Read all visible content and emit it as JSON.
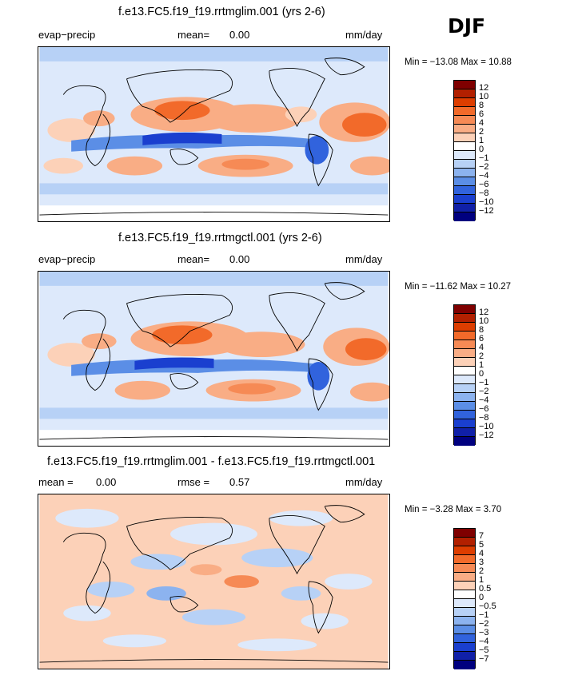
{
  "season": "DJF",
  "panels": [
    {
      "title": "f.e13.FC5.f19_f19.rrtmglim.001 (yrs 2-6)",
      "left_label": "evap−precip",
      "stat1_label": "mean=",
      "stat1_value": "0.00",
      "units": "mm/day",
      "min_max": "Min = −13.08 Max =   10.88",
      "colorbar": {
        "colors": [
          "#7f0000",
          "#b22000",
          "#dd3d00",
          "#f26a2a",
          "#f68a55",
          "#f9ad85",
          "#fcd1b8",
          "#ffffff",
          "#dde9fb",
          "#b7d1f6",
          "#8cb3ef",
          "#5b8ee6",
          "#3163dd",
          "#1a3fcf",
          "#1020a8",
          "#00007f"
        ],
        "labels": [
          "12",
          "10",
          "8",
          "6",
          "4",
          "2",
          "1",
          "0",
          "−1",
          "−2",
          "−4",
          "−6",
          "−8",
          "−10",
          "−12"
        ]
      }
    },
    {
      "title": "f.e13.FC5.f19_f19.rrtmgctl.001 (yrs 2-6)",
      "left_label": "evap−precip",
      "stat1_label": "mean=",
      "stat1_value": "0.00",
      "units": "mm/day",
      "min_max": "Min = −11.62 Max =   10.27",
      "colorbar": {
        "colors": [
          "#7f0000",
          "#b22000",
          "#dd3d00",
          "#f26a2a",
          "#f68a55",
          "#f9ad85",
          "#fcd1b8",
          "#ffffff",
          "#dde9fb",
          "#b7d1f6",
          "#8cb3ef",
          "#5b8ee6",
          "#3163dd",
          "#1a3fcf",
          "#1020a8",
          "#00007f"
        ],
        "labels": [
          "12",
          "10",
          "8",
          "6",
          "4",
          "2",
          "1",
          "0",
          "−1",
          "−2",
          "−4",
          "−6",
          "−8",
          "−10",
          "−12"
        ]
      }
    },
    {
      "title": "f.e13.FC5.f19_f19.rrtmglim.001 - f.e13.FC5.f19_f19.rrtmgctl.001",
      "stat1_label": "mean =",
      "stat1_value": "0.00",
      "stat2_label": "rmse =",
      "stat2_value": "0.57",
      "units": "mm/day",
      "min_max": "Min =  −3.28 Max =    3.70",
      "colorbar": {
        "colors": [
          "#7f0000",
          "#b22000",
          "#dd3d00",
          "#f26a2a",
          "#f68a55",
          "#f9ad85",
          "#fcd1b8",
          "#ffffff",
          "#dde9fb",
          "#b7d1f6",
          "#8cb3ef",
          "#5b8ee6",
          "#3163dd",
          "#1a3fcf",
          "#1020a8",
          "#00007f"
        ],
        "labels": [
          "7",
          "5",
          "4",
          "3",
          "2",
          "1",
          "0.5",
          "0",
          "−0.5",
          "−1",
          "−2",
          "−3",
          "−4",
          "−5",
          "−7"
        ]
      }
    }
  ],
  "chart_data": {
    "type": "heatmap",
    "variable": "evap−precip",
    "units": "mm/day",
    "season": "DJF",
    "panels": [
      {
        "name": "f.e13.FC5.f19_f19.rrtmglim.001 (yrs 2-6)",
        "mean": 0.0,
        "min": -13.08,
        "max": 10.88,
        "levels": [
          -12,
          -10,
          -8,
          -6,
          -4,
          -2,
          -1,
          0,
          1,
          2,
          4,
          6,
          8,
          10,
          12
        ]
      },
      {
        "name": "f.e13.FC5.f19_f19.rrtmgctl.001 (yrs 2-6)",
        "mean": 0.0,
        "min": -11.62,
        "max": 10.27,
        "levels": [
          -12,
          -10,
          -8,
          -6,
          -4,
          -2,
          -1,
          0,
          1,
          2,
          4,
          6,
          8,
          10,
          12
        ]
      },
      {
        "name": "f.e13.FC5.f19_f19.rrtmglim.001 - f.e13.FC5.f19_f19.rrtmgctl.001",
        "mean": 0.0,
        "rmse": 0.57,
        "min": -3.28,
        "max": 3.7,
        "levels": [
          -7,
          -5,
          -4,
          -3,
          -2,
          -1,
          -0.5,
          0,
          0.5,
          1,
          2,
          3,
          4,
          5,
          7
        ]
      }
    ]
  }
}
